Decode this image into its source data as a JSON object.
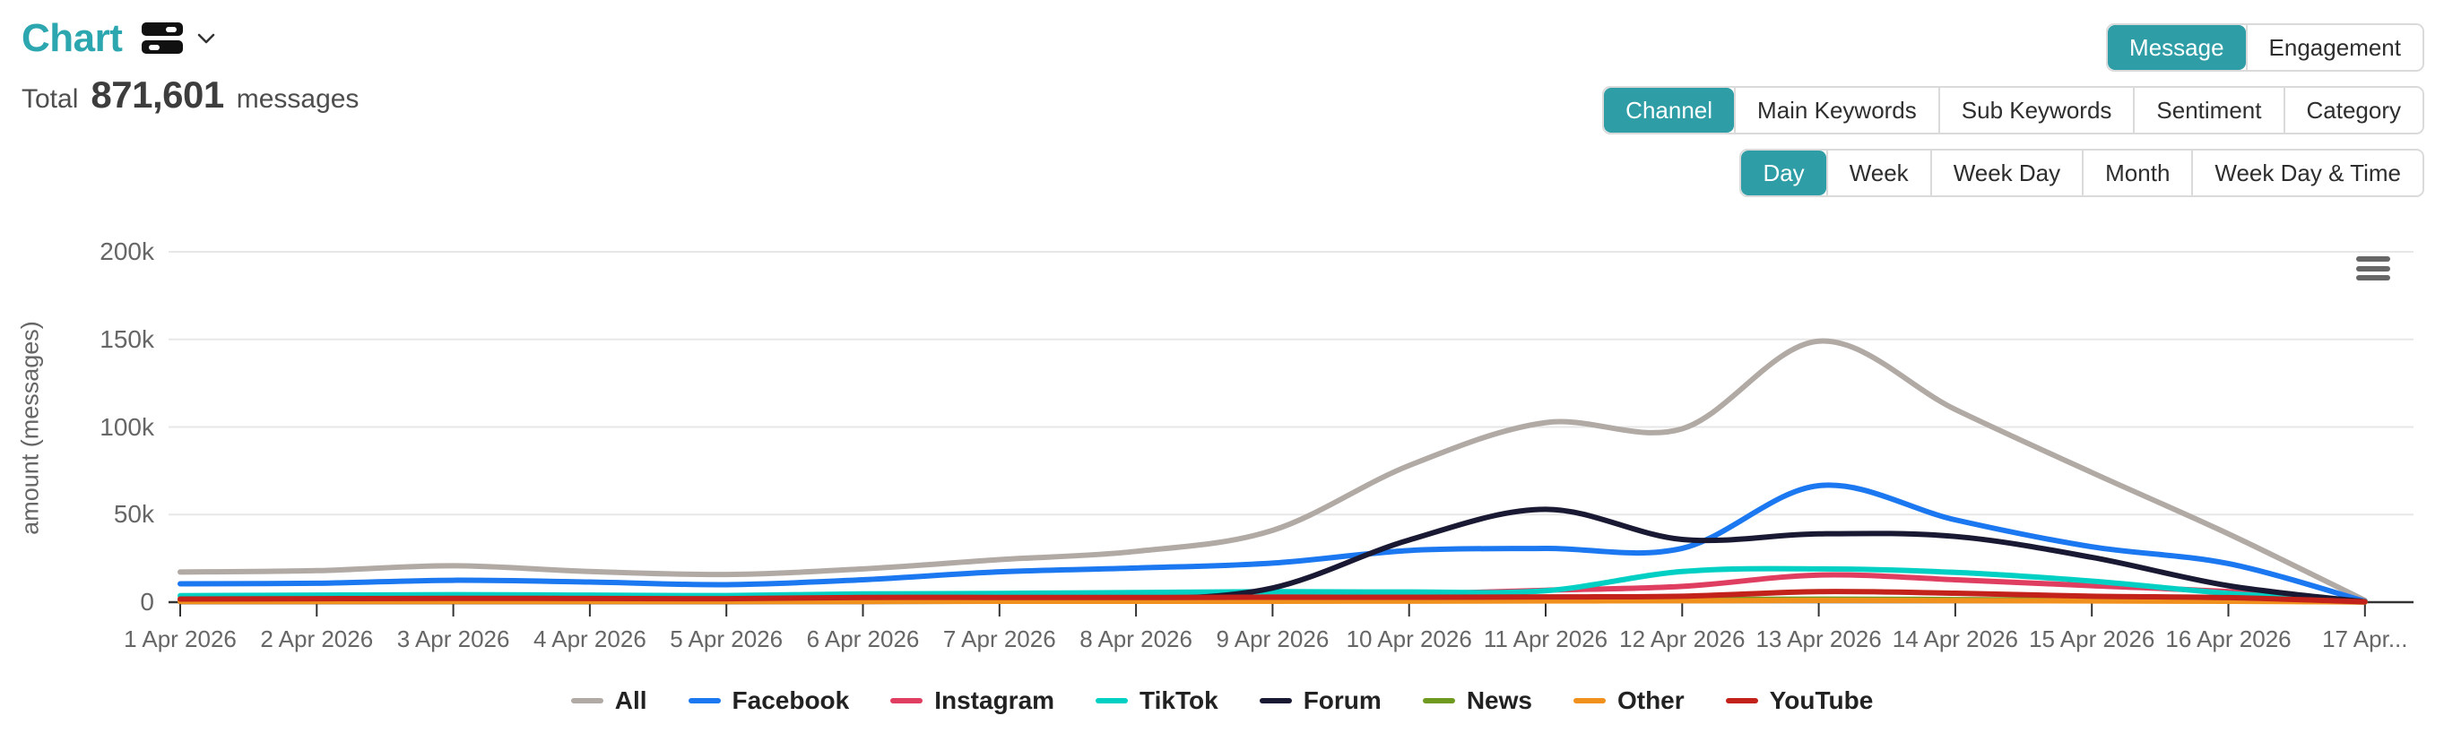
{
  "header": {
    "title": "Chart",
    "total_label": "Total",
    "total_value": "871,601",
    "total_unit": "messages"
  },
  "icons": {
    "title_menu": "stack-icon",
    "title_chevron": "chevron-down-icon",
    "chart_menu": "hamburger-menu-icon"
  },
  "colors": {
    "accent_teal": "#2E9DA6",
    "title_teal": "#2CA6AF",
    "axis_text": "#666666",
    "grid_line": "#e7e7e7",
    "axis_line": "#333333"
  },
  "toolbar": {
    "metric_tabs": [
      {
        "label": "Message",
        "active": true
      },
      {
        "label": "Engagement",
        "active": false
      }
    ],
    "dimension_tabs": [
      {
        "label": "Channel",
        "active": true
      },
      {
        "label": "Main Keywords",
        "active": false
      },
      {
        "label": "Sub Keywords",
        "active": false
      },
      {
        "label": "Sentiment",
        "active": false
      },
      {
        "label": "Category",
        "active": false
      }
    ],
    "granularity_tabs": [
      {
        "label": "Day",
        "active": true
      },
      {
        "label": "Week",
        "active": false
      },
      {
        "label": "Week Day",
        "active": false
      },
      {
        "label": "Month",
        "active": false
      },
      {
        "label": "Week Day & Time",
        "active": false
      }
    ]
  },
  "chart_data": {
    "type": "line",
    "title": "",
    "xlabel": "",
    "ylabel": "amount (messages)",
    "ylim": [
      0,
      200000
    ],
    "grid": true,
    "legend_position": "bottom",
    "x_labels": [
      "1 Apr 2026",
      "2 Apr 2026",
      "3 Apr 2026",
      "4 Apr 2026",
      "5 Apr 2026",
      "6 Apr 2026",
      "7 Apr 2026",
      "8 Apr 2026",
      "9 Apr 2026",
      "10 Apr 2026",
      "11 Apr 2026",
      "12 Apr 2026",
      "13 Apr 2026",
      "14 Apr 2026",
      "15 Apr 2026",
      "16 Apr 2026",
      "17 Apr..."
    ],
    "y_ticks": [
      {
        "label": "0",
        "value": 0
      },
      {
        "label": "50k",
        "value": 50000
      },
      {
        "label": "100k",
        "value": 100000
      },
      {
        "label": "150k",
        "value": 150000
      },
      {
        "label": "200k",
        "value": 200000
      }
    ],
    "series": [
      {
        "name": "All",
        "color": "#b1a9a3",
        "values": [
          17200,
          18000,
          20800,
          17500,
          15800,
          19000,
          24300,
          29000,
          41000,
          78000,
          102500,
          99000,
          149000,
          110000,
          74000,
          39000,
          1000
        ]
      },
      {
        "name": "Facebook",
        "color": "#1b78f0",
        "values": [
          10500,
          10800,
          12500,
          11500,
          10000,
          12800,
          17300,
          19500,
          22300,
          29500,
          30700,
          30700,
          66500,
          47000,
          31600,
          22000,
          500
        ]
      },
      {
        "name": "Instagram",
        "color": "#e03e60",
        "values": [
          1800,
          2000,
          2200,
          2100,
          2000,
          2200,
          2500,
          2800,
          3200,
          4500,
          6800,
          9000,
          15500,
          12800,
          9400,
          6000,
          300
        ]
      },
      {
        "name": "TikTok",
        "color": "#00d0c3",
        "values": [
          3700,
          4000,
          4300,
          4000,
          3800,
          4700,
          5000,
          5500,
          6000,
          5800,
          6500,
          17500,
          19000,
          17000,
          12000,
          5000,
          300
        ]
      },
      {
        "name": "Forum",
        "color": "#191933",
        "values": [
          300,
          300,
          300,
          300,
          300,
          400,
          600,
          1300,
          8100,
          35500,
          53000,
          35800,
          39000,
          37500,
          25600,
          9400,
          200
        ]
      },
      {
        "name": "News",
        "color": "#6e9b1f",
        "values": [
          600,
          600,
          700,
          700,
          600,
          700,
          800,
          800,
          900,
          1000,
          1200,
          1500,
          1700,
          1500,
          1200,
          800,
          100
        ]
      },
      {
        "name": "Other",
        "color": "#f0911e",
        "values": [
          400,
          400,
          400,
          400,
          400,
          400,
          500,
          500,
          500,
          600,
          700,
          800,
          1000,
          900,
          700,
          500,
          100
        ]
      },
      {
        "name": "YouTube",
        "color": "#c2221a",
        "values": [
          1800,
          2000,
          2200,
          2100,
          2000,
          2700,
          2700,
          2700,
          2800,
          2800,
          3000,
          3400,
          6000,
          5100,
          3400,
          2600,
          200
        ]
      }
    ]
  }
}
